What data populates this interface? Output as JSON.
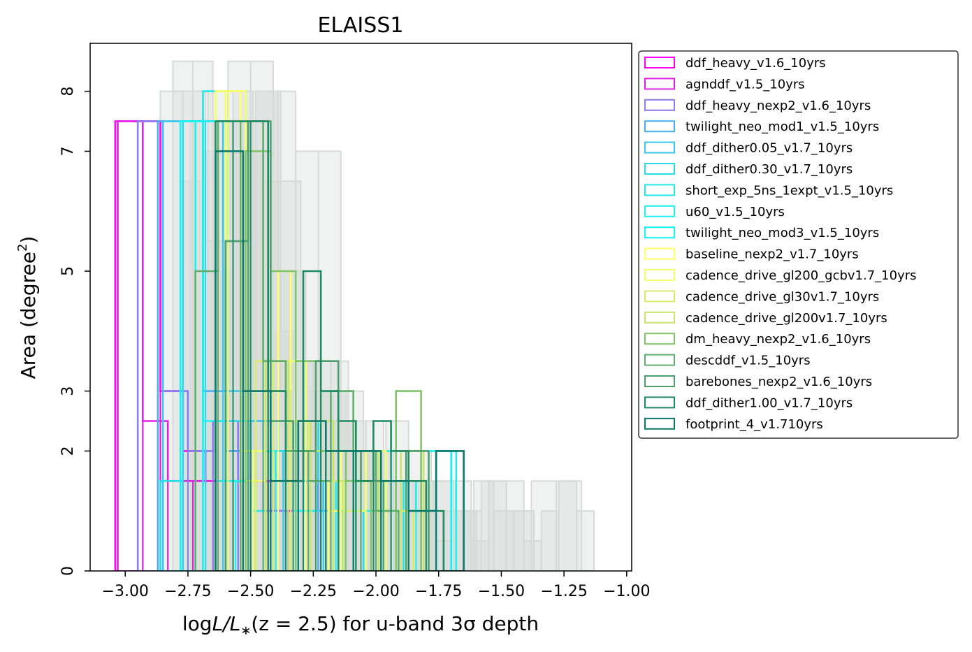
{
  "chart_data": {
    "type": "histogram",
    "title": "ELAISS1",
    "xlabel": {
      "pre": "log",
      "mid": "L/L",
      "sub": "∗",
      "post": "(z = 2.5) for u-band 3σ depth"
    },
    "ylabel": {
      "pre": "Area (degree",
      "sup": "2",
      "post": ")"
    },
    "xlim": [
      -3.14,
      -0.98
    ],
    "ylim": [
      0,
      8.8
    ],
    "x_ticks": [
      -3.0,
      -2.75,
      -2.5,
      -2.25,
      -2.0,
      -1.75,
      -1.5,
      -1.25,
      -1.0
    ],
    "x_tick_labels": [
      "−3.00",
      "−2.75",
      "−2.50",
      "−2.25",
      "−2.00",
      "−1.75",
      "−1.50",
      "−1.25",
      "−1.00"
    ],
    "y_ticks": [
      0,
      2,
      3,
      5,
      7,
      8
    ],
    "y_tick_labels": [
      "0",
      "2",
      "3",
      "5",
      "7",
      "8"
    ],
    "legend_position": "outside right, top",
    "background_series_color": "#d5dbd6",
    "background_series": [
      {
        "x0": -2.86,
        "width": 0.09,
        "heights": [
          8.0,
          8.0,
          5.5,
          8.5,
          8.5,
          8.0,
          7.0,
          7.0,
          3.0,
          2.0,
          2.5,
          2.0,
          1.5,
          1.0
        ]
      },
      {
        "x0": -2.81,
        "width": 0.08,
        "heights": [
          8.5,
          8.5,
          7.5,
          8.0,
          7.0,
          4.0,
          3.5,
          3.0,
          2.5,
          2.0,
          2.0,
          1.0,
          1.5,
          1.0,
          1.0,
          1.5,
          1.0,
          1.0
        ]
      },
      {
        "x0": -2.74,
        "width": 0.07,
        "heights": [
          7.5,
          8.0,
          7.5,
          7.0,
          6.5,
          5.0,
          3.5,
          3.0,
          3.5,
          2.5,
          2.5,
          1.5,
          1.5,
          1.0,
          0.5,
          1.5,
          0.5,
          1.5,
          1.5,
          0.5,
          1.0,
          1.5,
          1.0
        ]
      },
      {
        "x0": -2.78,
        "width": 0.1,
        "heights": [
          6.5,
          7.0,
          7.0,
          8.0,
          5.0,
          3.5,
          2.5,
          2.0,
          1.5,
          1.0,
          1.5,
          1.0,
          1.5,
          1.0,
          1.5,
          1.5
        ]
      },
      {
        "x0": -2.66,
        "width": 0.09,
        "heights": [
          5.0,
          7.5,
          8.0,
          6.5,
          3.0,
          3.0,
          2.0,
          2.0,
          1.5,
          1.0
        ]
      }
    ],
    "series": [
      {
        "name": "ddf_heavy_v1.6_10yrs",
        "color": "#ff00ff",
        "x0": -3.04,
        "width": 0.09,
        "heights": [
          7.5,
          7.5,
          3.0,
          2.0,
          1.5,
          2.0,
          1.5,
          1.0,
          2.0
        ]
      },
      {
        "name": "agnddf_v1.5_10yrs",
        "color": "#e31ee7",
        "x0": -3.03,
        "width": 0.1,
        "heights": [
          7.5,
          2.5,
          1.5,
          1.5,
          1.5,
          1.5,
          1.0,
          1.5,
          1.0
        ]
      },
      {
        "name": "ddf_heavy_nexp2_v1.6_10yrs",
        "color": "#8b7cf0",
        "x0": -2.95,
        "width": 0.1,
        "heights": [
          7.5,
          3.0,
          2.0,
          2.5,
          1.5,
          1.0
        ]
      },
      {
        "name": "twilight_neo_mod1_v1.5_10yrs",
        "color": "#4aaef0",
        "x0": -2.87,
        "width": 0.09,
        "heights": [
          7.5,
          7.5,
          3.0,
          2.0,
          2.5,
          1.5,
          1.5,
          1.0
        ]
      },
      {
        "name": "ddf_dither0.05_v1.7_10yrs",
        "color": "#3cc8ee",
        "x0": -2.85,
        "width": 0.08,
        "heights": [
          7.5,
          7.5,
          7.5,
          3.0,
          2.5,
          2.0,
          1.5,
          1.0,
          1.5
        ]
      },
      {
        "name": "ddf_dither0.30_v1.7_10yrs",
        "color": "#28dced",
        "x0": -2.86,
        "width": 0.09,
        "heights": [
          1.5,
          7.5,
          7.5,
          2.5,
          2.0,
          2.0,
          2.5,
          1.5,
          1.0
        ]
      },
      {
        "name": "short_exp_5ns_1expt_v1.5_10yrs",
        "color": "#24e6e8",
        "x0": -2.69,
        "width": 0.05,
        "heights": [
          8.0,
          8.0,
          1.5,
          1.5,
          1.0,
          2.0,
          2.5,
          3.5,
          2.0,
          1.5,
          1.5,
          1.0,
          1.0,
          1.0,
          2.0,
          1.5
        ]
      },
      {
        "name": "u60_v1.5_10yrs",
        "color": "#1ff0ec",
        "x0": -2.72,
        "width": 0.08,
        "heights": [
          7.5,
          1.5,
          1.5,
          2.0,
          1.5,
          1.0,
          1.5,
          1.0,
          1.5,
          1.0,
          1.5,
          1.0,
          2.0
        ]
      },
      {
        "name": "twilight_neo_mod3_v1.5_10yrs",
        "color": "#14f4f4",
        "x0": -2.78,
        "width": 0.09,
        "heights": [
          7.5,
          2.5,
          1.5,
          2.0,
          1.5,
          1.0,
          2.0,
          1.5,
          1.0,
          1.5,
          1.0,
          2.0
        ]
      },
      {
        "name": "baseline_nexp2_v1.7_10yrs",
        "color": "#ffff66",
        "x0": -2.64,
        "width": 0.05,
        "heights": [
          8.0,
          8.0,
          2.0,
          2.0,
          3.5,
          5.0,
          2.5,
          2.0,
          1.5,
          1.0,
          2.0,
          1.0
        ]
      },
      {
        "name": "cadence_drive_gl200_gcbv1.7_10yrs",
        "color": "#f2ff6a",
        "x0": -2.6,
        "width": 0.08,
        "heights": [
          8.0,
          1.5,
          3.5,
          3.5,
          2.5,
          1.5,
          1.0,
          2.0,
          1.0
        ]
      },
      {
        "name": "cadence_drive_gl30v1.7_10yrs",
        "color": "#d6ee6c",
        "x0": -2.48,
        "width": 0.07,
        "heights": [
          3.5,
          3.0,
          2.5,
          2.0,
          1.5,
          1.0,
          2.0,
          1.5,
          1.0
        ]
      },
      {
        "name": "cadence_drive_gl200v1.7_10yrs",
        "color": "#c8e46e",
        "x0": -2.44,
        "width": 0.09,
        "heights": [
          3.5,
          2.0,
          2.5,
          1.5,
          1.5,
          1.0,
          2.0
        ]
      },
      {
        "name": "dm_heavy_nexp2_v1.6_10yrs",
        "color": "#82c46a",
        "x0": -2.52,
        "width": 0.1,
        "heights": [
          7.0,
          5.0,
          3.5,
          2.0,
          1.5,
          1.0,
          3.0
        ]
      },
      {
        "name": "descddf_v1.5_10yrs",
        "color": "#5fae6e",
        "x0": -2.72,
        "width": 0.09,
        "heights": [
          5.0,
          7.5,
          7.5,
          3.5,
          2.0,
          1.5,
          3.0,
          2.0,
          1.0
        ]
      },
      {
        "name": "barebones_nexp2_v1.6_10yrs",
        "color": "#4d9e6c",
        "x0": -2.6,
        "width": 0.09,
        "heights": [
          5.5,
          7.5,
          2.5,
          2.0,
          3.5,
          2.0,
          1.5,
          1.5,
          2.0
        ]
      },
      {
        "name": "ddf_dither1.00_v1.7_10yrs",
        "color": "#1f8a64",
        "x0": -2.64,
        "width": 0.07,
        "heights": [
          7.5,
          7.5,
          7.5,
          3.0,
          1.5,
          5.0,
          3.0,
          2.5,
          1.5,
          2.5,
          2.0,
          1.5,
          1.0
        ]
      },
      {
        "name": "footprint_4_v1.710yrs",
        "color": "#0b7a6a",
        "x0": -2.64,
        "width": 0.11,
        "heights": [
          7.0,
          3.0,
          1.5,
          2.5,
          2.0,
          2.0,
          1.5,
          1.0,
          2.0
        ]
      }
    ]
  }
}
